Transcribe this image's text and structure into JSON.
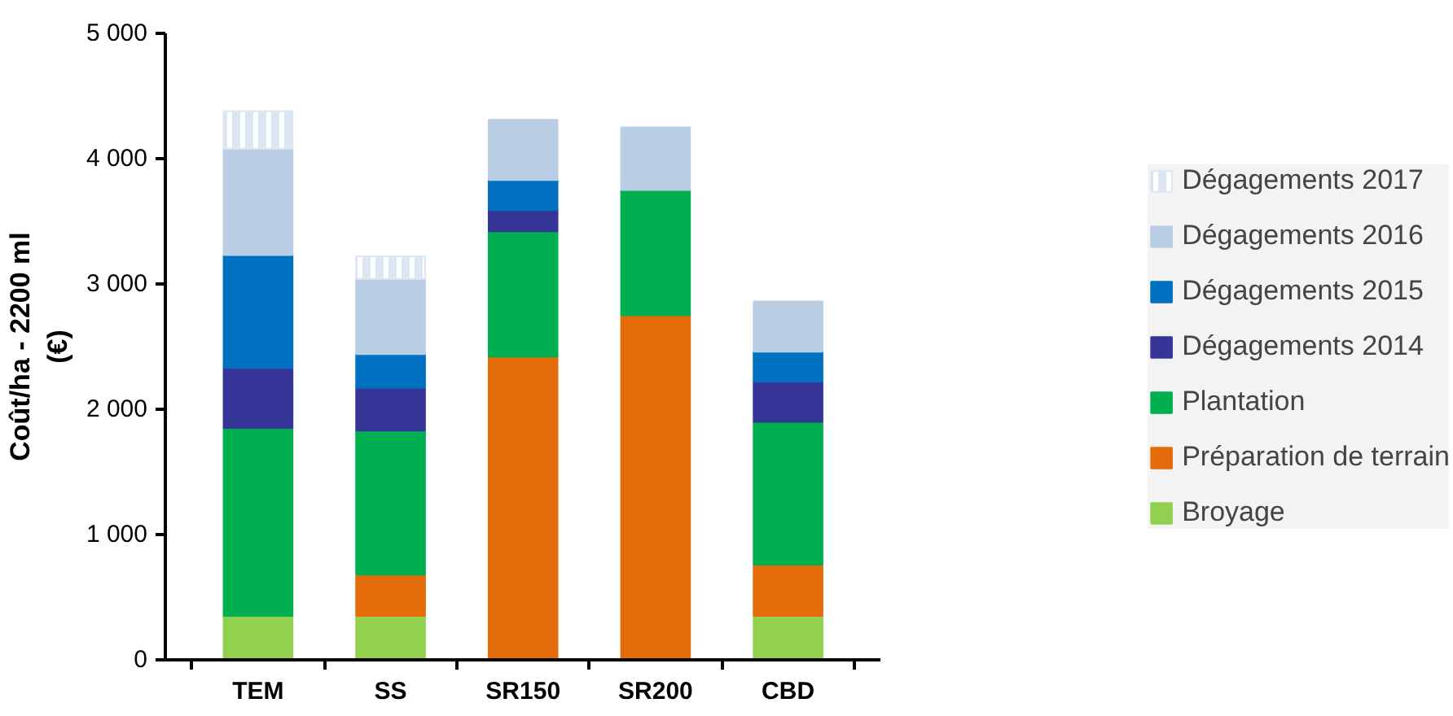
{
  "chart_data": {
    "type": "bar",
    "stacked": true,
    "ylabel": "Coût/ha - 2200 ml\n(€)",
    "categories": [
      "TEM",
      "SS",
      "SR150",
      "SR200",
      "CBD"
    ],
    "ylim": [
      0,
      5000
    ],
    "yticks": [
      0,
      {
        "value": 1000,
        "label": "1 000"
      },
      {
        "value": 2000,
        "label": "2 000"
      },
      {
        "value": 3000,
        "label": "3 000"
      },
      {
        "value": 4000,
        "label": "4 000"
      },
      {
        "value": 5000,
        "label": "5 000"
      }
    ],
    "grid": false,
    "legend": "right",
    "series": [
      {
        "name": "Broyage",
        "color": "#92d050",
        "values": [
          350,
          350,
          null,
          null,
          350
        ]
      },
      {
        "name": "Préparation de terrain",
        "color": "#e46c0a",
        "values": [
          null,
          330,
          2420,
          2750,
          410
        ]
      },
      {
        "name": "Plantation",
        "color": "#00b050",
        "values": [
          1500,
          1150,
          1000,
          1000,
          1140
        ]
      },
      {
        "name": "Dégagements 2014",
        "color": "#353598",
        "values": [
          480,
          340,
          170,
          null,
          320
        ]
      },
      {
        "name": "Dégagements 2015",
        "color": "#0070c0",
        "values": [
          900,
          270,
          240,
          null,
          240
        ]
      },
      {
        "name": "Dégagements 2016",
        "color": "#b9cde5",
        "values": [
          850,
          600,
          480,
          500,
          400
        ]
      },
      {
        "name": "Dégagements 2017",
        "color": "#dce6f2",
        "values": [
          300,
          180,
          null,
          null,
          null
        ]
      }
    ]
  }
}
